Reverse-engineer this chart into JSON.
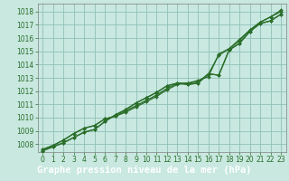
{
  "xlabel": "Graphe pression niveau de la mer (hPa)",
  "hours": [
    0,
    1,
    2,
    3,
    4,
    5,
    6,
    7,
    8,
    9,
    10,
    11,
    12,
    13,
    14,
    15,
    16,
    17,
    18,
    19,
    20,
    21,
    22,
    23
  ],
  "series": [
    [
      1007.6,
      1007.9,
      1008.3,
      1008.8,
      1009.2,
      1009.4,
      1009.9,
      1010.1,
      1010.4,
      1010.8,
      1011.2,
      1011.6,
      1012.1,
      1012.5,
      1012.6,
      1012.7,
      1013.3,
      1014.7,
      1015.2,
      1015.8,
      1016.6,
      1017.2,
      1017.6,
      1018.0
    ],
    [
      1007.6,
      1007.9,
      1008.3,
      1008.8,
      1009.2,
      1009.4,
      1009.9,
      1010.1,
      1010.5,
      1010.9,
      1011.3,
      1011.7,
      1012.2,
      1012.6,
      1012.6,
      1012.8,
      1013.1,
      1014.8,
      1015.2,
      1015.9,
      1016.6,
      1017.2,
      1017.6,
      1018.1
    ],
    [
      1007.5,
      1007.8,
      1008.1,
      1008.5,
      1008.9,
      1009.1,
      1009.7,
      1010.2,
      1010.6,
      1011.1,
      1011.5,
      1011.9,
      1012.4,
      1012.6,
      1012.5,
      1012.6,
      1013.3,
      1013.2,
      1015.1,
      1015.6,
      1016.5,
      1017.1,
      1017.3,
      1017.8
    ],
    [
      1007.5,
      1007.8,
      1008.1,
      1008.5,
      1008.9,
      1009.1,
      1009.7,
      1010.2,
      1010.6,
      1011.1,
      1011.5,
      1011.9,
      1012.4,
      1012.6,
      1012.5,
      1012.6,
      1013.3,
      1013.2,
      1015.1,
      1015.6,
      1016.5,
      1017.1,
      1017.3,
      1017.8
    ]
  ],
  "line_color": "#2a6e2a",
  "marker_color": "#2a6e2a",
  "bg_color": "#c8e8e0",
  "grid_color": "#90c0b8",
  "label_bg": "#2a6e2a",
  "label_text": "#ffffff",
  "ylim": [
    1007.4,
    1018.6
  ],
  "yticks": [
    1008,
    1009,
    1010,
    1011,
    1012,
    1013,
    1014,
    1015,
    1016,
    1017,
    1018
  ],
  "xticks": [
    0,
    1,
    2,
    3,
    4,
    5,
    6,
    7,
    8,
    9,
    10,
    11,
    12,
    13,
    14,
    15,
    16,
    17,
    18,
    19,
    20,
    21,
    22,
    23
  ],
  "title_fontsize": 7.5,
  "tick_fontsize": 5.5
}
